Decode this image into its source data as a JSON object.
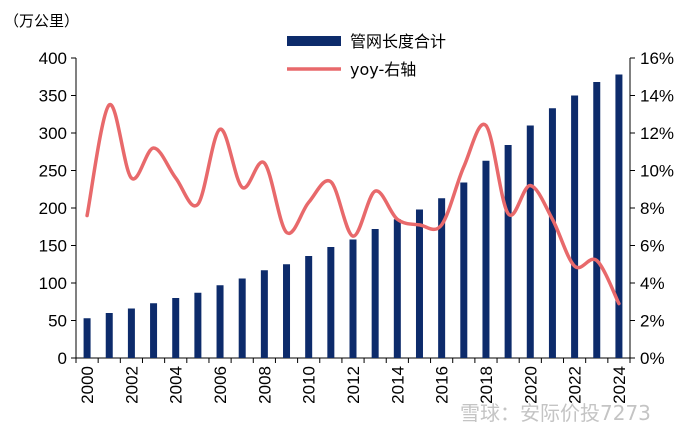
{
  "chart_data": {
    "type": "bar",
    "unit_label": "（万公里）",
    "x": [
      "2000",
      "2001",
      "2002",
      "2003",
      "2004",
      "2005",
      "2006",
      "2007",
      "2008",
      "2009",
      "2010",
      "2011",
      "2012",
      "2013",
      "2014",
      "2015",
      "2016",
      "2017",
      "2018",
      "2019",
      "2020",
      "2021",
      "2022",
      "2023",
      "2024"
    ],
    "x_tick_labels": [
      "2000",
      "2002",
      "2004",
      "2006",
      "2008",
      "2010",
      "2012",
      "2014",
      "2016",
      "2018",
      "2020",
      "2022",
      "2024"
    ],
    "series": [
      {
        "name": "管网长度合计",
        "type": "bar",
        "axis": "left",
        "color": "#0d2b6b",
        "values": [
          53,
          60,
          66,
          73,
          80,
          87,
          97,
          106,
          117,
          125,
          136,
          148,
          158,
          172,
          185,
          198,
          213,
          234,
          263,
          284,
          310,
          333,
          350,
          368,
          378
        ]
      },
      {
        "name": "yoy-右轴",
        "type": "line",
        "axis": "right",
        "color": "#e8696b",
        "values": [
          7.6,
          13.5,
          9.6,
          11.2,
          9.6,
          8.2,
          12.2,
          9.1,
          10.4,
          6.7,
          8.3,
          9.4,
          6.5,
          8.9,
          7.4,
          7.1,
          7.1,
          10.2,
          12.4,
          7.7,
          9.2,
          7.4,
          4.9,
          5.2,
          2.9
        ]
      }
    ],
    "y_left": {
      "ylim": [
        0,
        400
      ],
      "ticks": [
        0,
        50,
        100,
        150,
        200,
        250,
        300,
        350,
        400
      ]
    },
    "y_right": {
      "ylim": [
        0,
        16
      ],
      "ticks": [
        "0%",
        "2%",
        "4%",
        "6%",
        "8%",
        "10%",
        "12%",
        "14%",
        "16%"
      ]
    },
    "legend_placement": "top-center",
    "grid": false
  },
  "watermark": "雪球：安际价投7273"
}
